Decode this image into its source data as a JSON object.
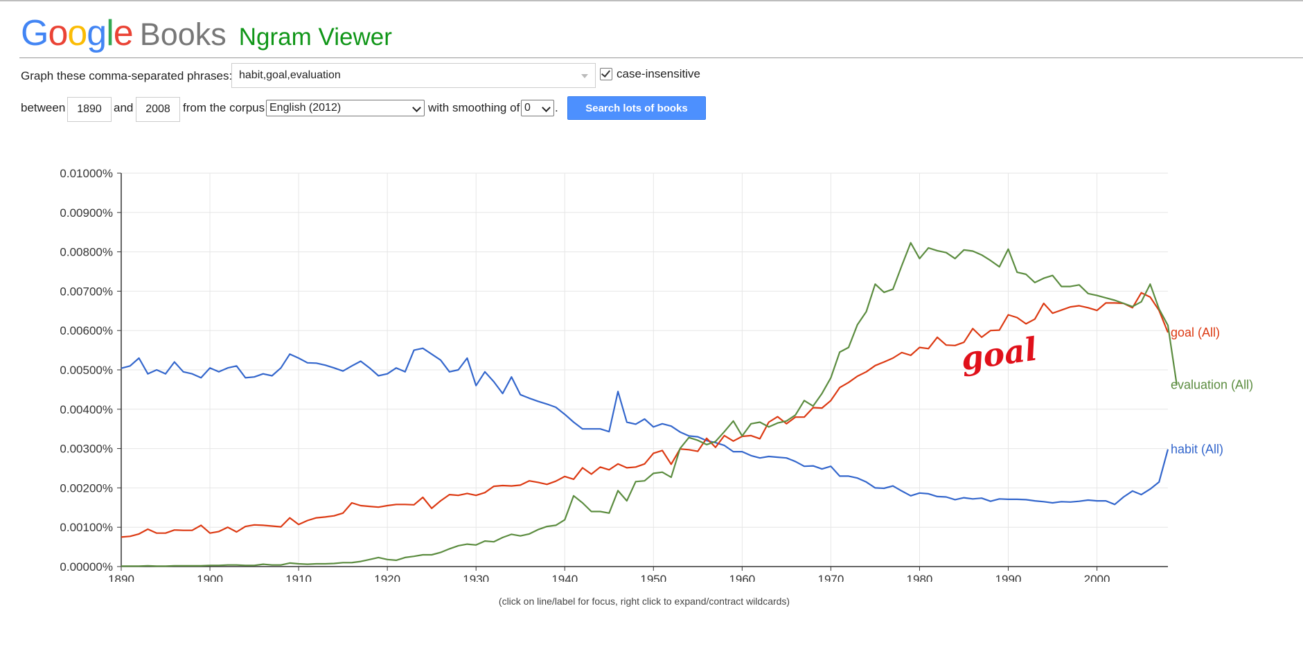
{
  "header": {
    "logo_letters": [
      {
        "ch": "G",
        "color": "#4285F4"
      },
      {
        "ch": "o",
        "color": "#EA4335"
      },
      {
        "ch": "o",
        "color": "#FBBC05"
      },
      {
        "ch": "g",
        "color": "#4285F4"
      },
      {
        "ch": "l",
        "color": "#34A853"
      },
      {
        "ch": "e",
        "color": "#EA4335"
      }
    ],
    "logo_books": "Books",
    "logo_ngram": "Ngram Viewer"
  },
  "form": {
    "phrases_label": "Graph these comma-separated phrases:",
    "phrases_value": "habit,goal,evaluation",
    "case_insensitive_label": "case-insensitive",
    "case_insensitive_checked": true,
    "between_label": "between",
    "start_year": "1890",
    "and_label": "and",
    "end_year": "2008",
    "corpus_label": "from the corpus",
    "corpus_value": "English (2012)",
    "smoothing_label": "with smoothing of",
    "smoothing_value": "0",
    "period": ".",
    "search_button": "Search lots of books"
  },
  "chart_footer_note": "(click on line/label for focus, right click to expand/contract wildcards)",
  "annotation_text": "goal",
  "chart_data": {
    "type": "line",
    "x_start": 1890,
    "x_end": 2008,
    "xlim": [
      1890,
      2008
    ],
    "ylim": [
      0,
      0.01
    ],
    "x_ticks": [
      1890,
      1900,
      1910,
      1920,
      1930,
      1940,
      1950,
      1960,
      1970,
      1980,
      1990,
      2000
    ],
    "y_ticks": [
      "0.00000%",
      "0.00100%",
      "0.00200%",
      "0.00300%",
      "0.00400%",
      "0.00500%",
      "0.00600%",
      "0.00700%",
      "0.00800%",
      "0.00900%",
      "0.01000%"
    ],
    "y_tick_values": [
      0,
      0.001,
      0.002,
      0.003,
      0.004,
      0.005,
      0.006,
      0.007,
      0.008,
      0.009,
      0.01
    ],
    "grid": true,
    "series": [
      {
        "name": "habit (All)",
        "color": "#3366CC",
        "values": [
          0.00504,
          0.0051,
          0.0053,
          0.0049,
          0.005,
          0.0049,
          0.0052,
          0.00495,
          0.0049,
          0.0048,
          0.00505,
          0.00495,
          0.00505,
          0.0051,
          0.0048,
          0.00482,
          0.0049,
          0.00485,
          0.00505,
          0.0054,
          0.0053,
          0.00518,
          0.00517,
          0.00512,
          0.00505,
          0.00497,
          0.0051,
          0.00522,
          0.00505,
          0.00485,
          0.0049,
          0.00505,
          0.00495,
          0.0055,
          0.00555,
          0.0054,
          0.00525,
          0.00495,
          0.005,
          0.0053,
          0.0046,
          0.00495,
          0.0047,
          0.0044,
          0.00482,
          0.00437,
          0.00428,
          0.0042,
          0.00413,
          0.00405,
          0.00387,
          0.00367,
          0.0035,
          0.0035,
          0.0035,
          0.00343,
          0.00445,
          0.00367,
          0.00362,
          0.00375,
          0.00355,
          0.00363,
          0.00357,
          0.00342,
          0.00332,
          0.0033,
          0.0032,
          0.00315,
          0.00308,
          0.00292,
          0.00292,
          0.00282,
          0.00276,
          0.0028,
          0.00278,
          0.00276,
          0.00267,
          0.00255,
          0.00256,
          0.00248,
          0.00255,
          0.0023,
          0.0023,
          0.00225,
          0.00215,
          0.002,
          0.00199,
          0.00205,
          0.00192,
          0.0018,
          0.00187,
          0.00185,
          0.00178,
          0.00177,
          0.0017,
          0.00175,
          0.00172,
          0.00174,
          0.00166,
          0.00172,
          0.00171,
          0.00171,
          0.0017,
          0.00167,
          0.00165,
          0.00162,
          0.00165,
          0.00164,
          0.00166,
          0.00169,
          0.00167,
          0.00167,
          0.00158,
          0.00177,
          0.00192,
          0.00183,
          0.00197,
          0.00215,
          0.00298
        ]
      },
      {
        "name": "goal (All)",
        "color": "#DC3912",
        "values": [
          0.00075,
          0.00077,
          0.00083,
          0.00095,
          0.00085,
          0.00085,
          0.00093,
          0.00092,
          0.00092,
          0.00105,
          0.00085,
          0.00089,
          0.001,
          0.00088,
          0.00102,
          0.00106,
          0.00105,
          0.00103,
          0.00101,
          0.00124,
          0.00107,
          0.00117,
          0.00124,
          0.00126,
          0.00129,
          0.00136,
          0.00162,
          0.00155,
          0.00153,
          0.00151,
          0.00155,
          0.00158,
          0.00158,
          0.00157,
          0.00176,
          0.00148,
          0.00167,
          0.00183,
          0.00181,
          0.00186,
          0.00181,
          0.00188,
          0.00204,
          0.00206,
          0.00205,
          0.00207,
          0.00218,
          0.00214,
          0.00209,
          0.00217,
          0.00229,
          0.00222,
          0.00251,
          0.00235,
          0.00253,
          0.00246,
          0.00261,
          0.00251,
          0.00253,
          0.00261,
          0.00288,
          0.00295,
          0.0026,
          0.00299,
          0.00297,
          0.00293,
          0.00326,
          0.00303,
          0.00333,
          0.00319,
          0.00331,
          0.00333,
          0.00325,
          0.00367,
          0.00381,
          0.00363,
          0.0038,
          0.0038,
          0.00404,
          0.00403,
          0.00422,
          0.00455,
          0.00468,
          0.00484,
          0.00495,
          0.00511,
          0.0052,
          0.0053,
          0.00544,
          0.00537,
          0.00557,
          0.00554,
          0.00583,
          0.00563,
          0.00562,
          0.0057,
          0.00605,
          0.00583,
          0.006,
          0.00601,
          0.0064,
          0.00633,
          0.00617,
          0.00629,
          0.00669,
          0.00644,
          0.00652,
          0.0066,
          0.00663,
          0.00658,
          0.00651,
          0.0067,
          0.0067,
          0.00669,
          0.00658,
          0.00696,
          0.00685,
          0.00651,
          0.00595
        ]
      },
      {
        "name": "evaluation (All)",
        "color": "#5B8C3F",
        "values": [
          1e-05,
          1e-05,
          1e-05,
          2e-05,
          1e-05,
          1e-05,
          2e-05,
          2e-05,
          2e-05,
          2e-05,
          3e-05,
          3e-05,
          4e-05,
          4e-05,
          3e-05,
          3e-05,
          6e-05,
          4e-05,
          4e-05,
          9e-05,
          7e-05,
          6e-05,
          7e-05,
          7e-05,
          8e-05,
          0.0001,
          0.0001,
          0.00013,
          0.00018,
          0.00023,
          0.00018,
          0.00016,
          0.00023,
          0.00026,
          0.0003,
          0.0003,
          0.00036,
          0.00045,
          0.00053,
          0.00057,
          0.00055,
          0.00065,
          0.00063,
          0.00074,
          0.00082,
          0.00078,
          0.00083,
          0.00094,
          0.00102,
          0.00105,
          0.00119,
          0.0018,
          0.00162,
          0.0014,
          0.0014,
          0.00136,
          0.00193,
          0.00167,
          0.00216,
          0.00218,
          0.00237,
          0.0024,
          0.00227,
          0.003,
          0.00328,
          0.00321,
          0.0031,
          0.00318,
          0.00343,
          0.0037,
          0.00332,
          0.00363,
          0.00367,
          0.00355,
          0.00365,
          0.0037,
          0.00385,
          0.00422,
          0.00408,
          0.0044,
          0.0048,
          0.00545,
          0.00557,
          0.00615,
          0.00648,
          0.00718,
          0.00697,
          0.00705,
          0.00765,
          0.00823,
          0.00783,
          0.0081,
          0.00803,
          0.00798,
          0.00783,
          0.00805,
          0.00802,
          0.00792,
          0.00778,
          0.00762,
          0.00807,
          0.00748,
          0.00743,
          0.00722,
          0.00733,
          0.0074,
          0.00712,
          0.00712,
          0.00716,
          0.00694,
          0.00689,
          0.00683,
          0.00677,
          0.00669,
          0.00661,
          0.00673,
          0.00718,
          0.00655,
          0.00613,
          0.00462
        ]
      }
    ]
  }
}
